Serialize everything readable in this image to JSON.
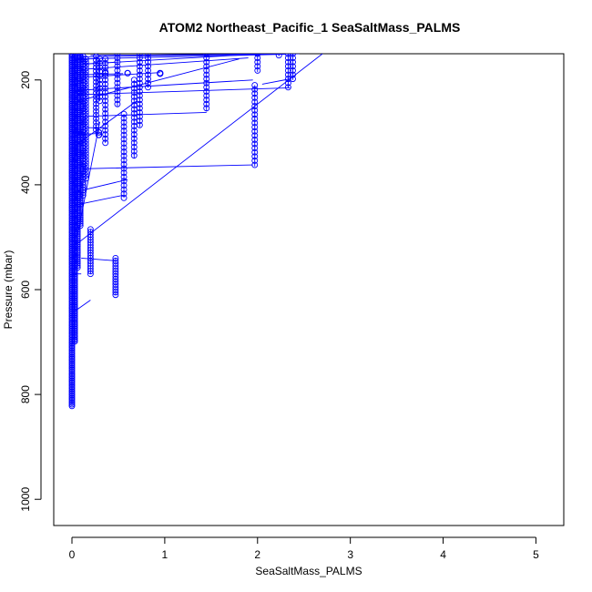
{
  "chart_data": {
    "type": "scatter",
    "title": "ATOM2 Northeast_Pacific_1 SeaSaltMass_PALMS",
    "xlabel": "SeaSaltMass_PALMS",
    "ylabel": "Pressure (mbar)",
    "xlim": [
      0,
      5.3
    ],
    "ylim": [
      1050,
      150
    ],
    "y_reversed": true,
    "x_ticks": [
      0,
      1,
      2,
      3,
      4,
      5
    ],
    "y_ticks": [
      200,
      400,
      600,
      800,
      1000
    ],
    "series_color": "#0000ff",
    "marker": "open-circle",
    "connect_points": true,
    "columns": [
      {
        "x": 0.0,
        "y_from": 150,
        "y_to": 822,
        "step": 3
      },
      {
        "x": 0.03,
        "y_from": 150,
        "y_to": 700,
        "step": 3
      },
      {
        "x": 0.06,
        "y_from": 150,
        "y_to": 560,
        "step": 4
      },
      {
        "x": 0.09,
        "y_from": 150,
        "y_to": 480,
        "step": 4
      },
      {
        "x": 0.12,
        "y_from": 155,
        "y_to": 420,
        "step": 5
      },
      {
        "x": 0.15,
        "y_from": 160,
        "y_to": 390,
        "step": 6
      },
      {
        "x": 0.2,
        "y_from": 485,
        "y_to": 570,
        "step": 5
      },
      {
        "x": 0.26,
        "y_from": 155,
        "y_to": 300,
        "step": 7
      },
      {
        "x": 0.3,
        "y_from": 160,
        "y_to": 240,
        "step": 8
      },
      {
        "x": 0.36,
        "y_from": 160,
        "y_to": 320,
        "step": 8
      },
      {
        "x": 0.47,
        "y_from": 540,
        "y_to": 610,
        "step": 5
      },
      {
        "x": 0.49,
        "y_from": 150,
        "y_to": 250,
        "step": 8
      },
      {
        "x": 0.56,
        "y_from": 265,
        "y_to": 425,
        "step": 8
      },
      {
        "x": 0.67,
        "y_from": 200,
        "y_to": 350,
        "step": 8
      },
      {
        "x": 0.73,
        "y_from": 150,
        "y_to": 290,
        "step": 8
      },
      {
        "x": 0.82,
        "y_from": 150,
        "y_to": 215,
        "step": 8
      },
      {
        "x": 1.45,
        "y_from": 150,
        "y_to": 260,
        "step": 8
      },
      {
        "x": 1.97,
        "y_from": 210,
        "y_to": 365,
        "step": 8
      },
      {
        "x": 2.0,
        "y_from": 150,
        "y_to": 185,
        "step": 8
      },
      {
        "x": 2.12,
        "y_from": 145,
        "y_to": 150,
        "step": 8
      },
      {
        "x": 2.23,
        "y_from": 145,
        "y_to": 155,
        "step": 8
      },
      {
        "x": 2.33,
        "y_from": 150,
        "y_to": 215,
        "step": 8
      },
      {
        "x": 2.38,
        "y_from": 150,
        "y_to": 200,
        "step": 8
      }
    ],
    "points": [
      {
        "x": 0.6,
        "y": 187
      },
      {
        "x": 0.95,
        "y": 187
      },
      {
        "x": 0.95,
        "y": 188
      },
      {
        "x": 0.29,
        "y": 305
      },
      {
        "x": 0.29,
        "y": 300
      },
      {
        "x": 0.09,
        "y": 155
      },
      {
        "x": 0.36,
        "y": 187
      }
    ],
    "lines": [
      [
        [
          0.0,
          645
        ],
        [
          0.2,
          620
        ]
      ],
      [
        [
          0.0,
          570
        ],
        [
          0.1,
          570
        ]
      ],
      [
        [
          0.1,
          540
        ],
        [
          0.47,
          545
        ]
      ],
      [
        [
          0.0,
          550
        ],
        [
          0.3,
          280
        ]
      ],
      [
        [
          0.0,
          520
        ],
        [
          2.7,
          150
        ]
      ],
      [
        [
          0.0,
          440
        ],
        [
          0.55,
          420
        ]
      ],
      [
        [
          0.0,
          415
        ],
        [
          0.6,
          390
        ]
      ],
      [
        [
          0.0,
          370
        ],
        [
          1.95,
          362
        ]
      ],
      [
        [
          0.0,
          330
        ],
        [
          0.7,
          240
        ]
      ],
      [
        [
          0.0,
          305
        ],
        [
          0.3,
          302
        ]
      ],
      [
        [
          0.0,
          300
        ],
        [
          0.15,
          300
        ]
      ],
      [
        [
          0.0,
          290
        ],
        [
          0.35,
          292
        ]
      ],
      [
        [
          0.05,
          270
        ],
        [
          1.45,
          262
        ]
      ],
      [
        [
          0.07,
          240
        ],
        [
          1.8,
          160
        ]
      ],
      [
        [
          0.06,
          228
        ],
        [
          2.35,
          215
        ]
      ],
      [
        [
          0.05,
          220
        ],
        [
          1.95,
          200
        ]
      ],
      [
        [
          2.05,
          208
        ],
        [
          2.35,
          198
        ]
      ],
      [
        [
          0.08,
          195
        ],
        [
          0.95,
          186
        ]
      ],
      [
        [
          0.08,
          190
        ],
        [
          0.55,
          188
        ]
      ],
      [
        [
          0.1,
          180
        ],
        [
          1.9,
          158
        ]
      ],
      [
        [
          0.1,
          170
        ],
        [
          2.05,
          150
        ]
      ],
      [
        [
          0.12,
          160
        ],
        [
          2.3,
          151
        ]
      ],
      [
        [
          0.15,
          156
        ],
        [
          2.3,
          150
        ]
      ],
      [
        [
          0.2,
          153
        ],
        [
          2.45,
          150
        ]
      ],
      [
        [
          0.0,
          360
        ],
        [
          0.05,
          330
        ]
      ],
      [
        [
          0.05,
          430
        ],
        [
          0.0,
          380
        ]
      ]
    ]
  }
}
